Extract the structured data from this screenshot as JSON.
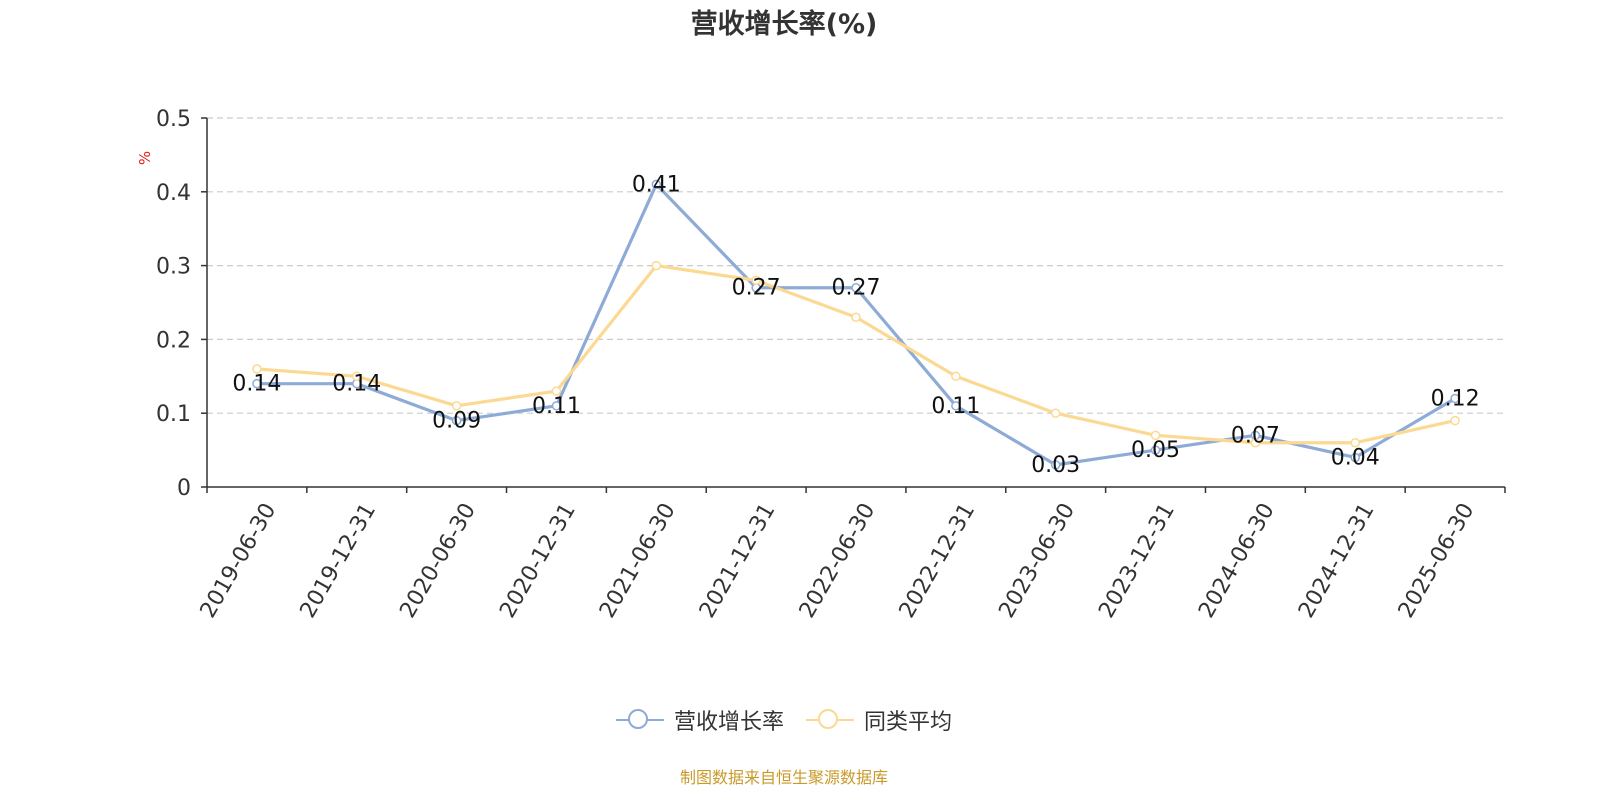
{
  "chart_data": {
    "type": "line",
    "title": "营收增长率(%)",
    "ylabel": "%",
    "ylim": [
      0,
      0.5
    ],
    "yticks": [
      0,
      0.1,
      0.2,
      0.3,
      0.4,
      0.5
    ],
    "ytick_labels": [
      "0",
      "0.1",
      "0.2",
      "0.3",
      "0.4",
      "0.5"
    ],
    "categories": [
      "2019-06-30",
      "2019-12-31",
      "2020-06-30",
      "2020-12-31",
      "2021-06-30",
      "2021-12-31",
      "2022-06-30",
      "2022-12-31",
      "2023-06-30",
      "2023-12-31",
      "2024-06-30",
      "2024-12-31",
      "2025-06-30"
    ],
    "series": [
      {
        "name": "营收增长率",
        "color": "#8eabd7",
        "values": [
          0.14,
          0.14,
          0.09,
          0.11,
          0.41,
          0.27,
          0.27,
          0.11,
          0.03,
          0.05,
          0.07,
          0.04,
          0.12
        ],
        "labels": [
          "0.14",
          "0.14",
          "0.09",
          "0.11",
          "0.41",
          "0.27",
          "0.27",
          "0.11",
          "0.03",
          "0.05",
          "0.07",
          "0.04",
          "0.12"
        ]
      },
      {
        "name": "同类平均",
        "color": "#fbd992",
        "values": [
          0.16,
          0.15,
          0.11,
          0.13,
          0.3,
          0.28,
          0.23,
          0.15,
          0.1,
          0.07,
          0.06,
          0.06,
          0.09
        ]
      }
    ],
    "grid": true,
    "legend": "bottom-center"
  },
  "source": "制图数据来自恒生聚源数据库"
}
